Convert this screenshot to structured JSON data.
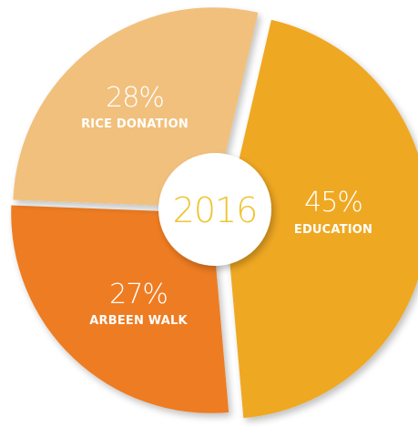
{
  "chart_data": {
    "type": "pie",
    "center_label": "2016",
    "slices": [
      {
        "label": "EDUCATION",
        "value": 45,
        "display": "45%",
        "color": "#efa821"
      },
      {
        "label": "ARBEEN WALK",
        "value": 27,
        "display": "27%",
        "color": "#ee7c23"
      },
      {
        "label": "RICE DONATION",
        "value": 28,
        "display": "28%",
        "color": "#f1c07b"
      }
    ],
    "center_color": "#ffffff",
    "center_text_color": "#efc433"
  }
}
